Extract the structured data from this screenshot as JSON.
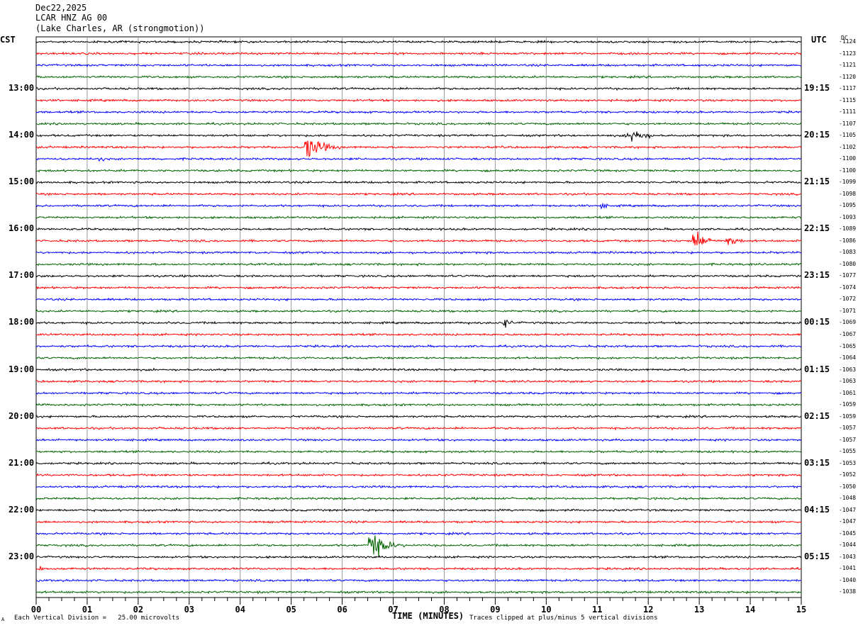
{
  "header": {
    "date": "Dec22,2025",
    "station": "LCAR HNZ AG 00",
    "location": "(Lake Charles, AR (strongmotion))"
  },
  "left_zone": "CST",
  "right_zone": "UTC",
  "dc_heading": "DC",
  "footer": {
    "scale_note": "Each Vertical Division =   25.00 microvolts",
    "clip_note": "Traces clipped at plus/minus 5 vertical divisions",
    "corner_mark": "A"
  },
  "colors": {
    "cycle": [
      "#000000",
      "#ff0000",
      "#0000ff",
      "#006400"
    ],
    "grid": "#999999"
  },
  "chart_data": {
    "type": "line",
    "title": "",
    "xlabel": "TIME (MINUTES)",
    "xlim": [
      0,
      15
    ],
    "x_ticks": [
      "00",
      "01",
      "02",
      "03",
      "04",
      "05",
      "06",
      "07",
      "08",
      "09",
      "10",
      "11",
      "12",
      "13",
      "14",
      "15"
    ],
    "rows_per_hour": 4,
    "left_hour_labels": [
      "13:00",
      "14:00",
      "15:00",
      "16:00",
      "17:00",
      "18:00",
      "19:00",
      "20:00",
      "21:00",
      "22:00",
      "23:00"
    ],
    "right_hour_labels": [
      "19:15",
      "20:15",
      "21:15",
      "22:15",
      "23:15",
      "00:15",
      "01:15",
      "02:15",
      "03:15",
      "04:15",
      "05:15"
    ],
    "dc_offsets": [
      "-1124",
      "-1123",
      "-1121",
      "-1120",
      "-1117",
      "-1115",
      "-1111",
      "-1107",
      "-1105",
      "-1102",
      "-1100",
      "-1100",
      "-1099",
      "-1098",
      "-1095",
      "-1093",
      "-1089",
      "-1086",
      "-1083",
      "-1080",
      "-1077",
      "-1074",
      "-1072",
      "-1071",
      "-1069",
      "-1067",
      "-1065",
      "-1064",
      "-1063",
      "-1063",
      "-1061",
      "-1059",
      "-1059",
      "-1057",
      "-1057",
      "-1055",
      "-1053",
      "-1052",
      "-1050",
      "-1048",
      "-1047",
      "-1047",
      "-1045",
      "-1044",
      "-1043",
      "-1041",
      "-1040",
      "-1038"
    ],
    "events": [
      {
        "row": 3,
        "minute": 9.15,
        "amplitude": 3,
        "duration": 0.15
      },
      {
        "row": 8,
        "minute": 11.5,
        "amplitude": 3,
        "duration": 0.5
      },
      {
        "row": 8,
        "minute": 11.65,
        "amplitude": 15,
        "duration": 0.6
      },
      {
        "row": 9,
        "minute": 5.25,
        "amplitude": 17,
        "duration": 0.9
      },
      {
        "row": 10,
        "minute": 1.2,
        "amplitude": 5,
        "duration": 0.4
      },
      {
        "row": 14,
        "minute": 11.05,
        "amplitude": 5,
        "duration": 0.4
      },
      {
        "row": 17,
        "minute": 12.5,
        "amplitude": 3,
        "duration": 0.3
      },
      {
        "row": 17,
        "minute": 12.85,
        "amplitude": 18,
        "duration": 0.6
      },
      {
        "row": 17,
        "minute": 13.5,
        "amplitude": 10,
        "duration": 0.6
      },
      {
        "row": 24,
        "minute": 2.5,
        "amplitude": 3,
        "duration": 0.4
      },
      {
        "row": 24,
        "minute": 8.4,
        "amplitude": 3,
        "duration": 0.4
      },
      {
        "row": 24,
        "minute": 9.15,
        "amplitude": 12,
        "duration": 0.3
      },
      {
        "row": 43,
        "minute": 6.5,
        "amplitude": 22,
        "duration": 0.8
      },
      {
        "row": 45,
        "minute": 0.05,
        "amplitude": 5,
        "duration": 0.3
      }
    ]
  }
}
